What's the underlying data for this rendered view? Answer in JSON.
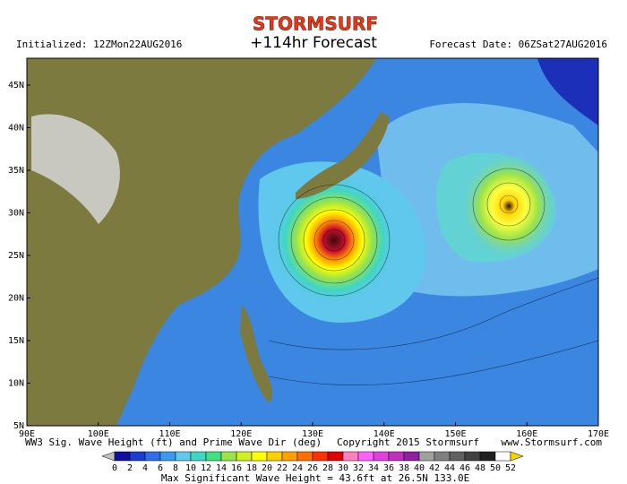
{
  "header": {
    "logo": "STORMSURF",
    "initialized": "Initialized: 12ZMon22AUG2016",
    "forecast_hour": "+114hr Forecast",
    "forecast_date": "Forecast Date: 06ZSat27AUG2016"
  },
  "map": {
    "lat_labels": [
      "45N",
      "40N",
      "35N",
      "30N",
      "25N",
      "20N",
      "15N",
      "10N",
      "5N"
    ],
    "lon_labels": [
      "90E",
      "100E",
      "110E",
      "120E",
      "130E",
      "140E",
      "150E",
      "160E",
      "170E"
    ]
  },
  "colorbar": {
    "labels": [
      0,
      2,
      4,
      6,
      8,
      10,
      12,
      14,
      16,
      18,
      20,
      22,
      24,
      26,
      28,
      30,
      32,
      34,
      36,
      38,
      40,
      42,
      44,
      46,
      48,
      50,
      52
    ],
    "colors": [
      "#1010a0",
      "#1a3cd0",
      "#2f6ee8",
      "#3a9af0",
      "#5fc8ec",
      "#3fd6c4",
      "#40e080",
      "#9be34a",
      "#d0f020",
      "#ffff00",
      "#ffd000",
      "#ffa000",
      "#ff7000",
      "#ff3000",
      "#e00000",
      "#ff80c0",
      "#ff60ff",
      "#e040e0",
      "#c030c0",
      "#9020a0",
      "#a0a0a0",
      "#808080",
      "#606060",
      "#404040",
      "#202020",
      "#ffffff"
    ],
    "low_color": "#c0c0c0",
    "high_color": "#ffd000"
  },
  "footer": {
    "product": "WW3 Sig. Wave Height (ft) and Prime Wave Dir (deg)",
    "copyright": "Copyright 2015 Stormsurf",
    "website": "www.Stormsurf.com",
    "max_note": "Max Significant Wave Height = 43.6ft at 26.5N 133.0E"
  }
}
